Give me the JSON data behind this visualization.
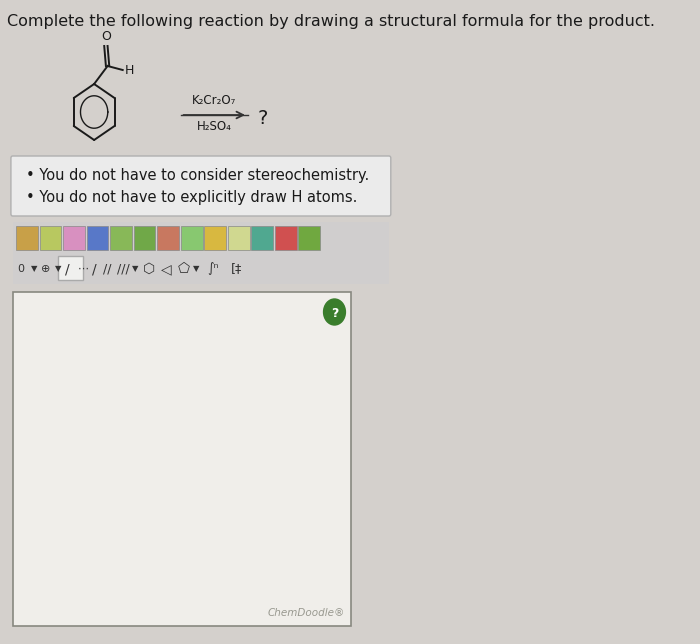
{
  "title": "Complete the following reaction by drawing a structural formula for the product.",
  "title_fontsize": 11.5,
  "background_color": "#d4d0cc",
  "black_color": "#1a1a1a",
  "bullet_text_1": "You do not have to consider stereochemistry.",
  "bullet_text_2": "You do not have to explicitly draw H atoms.",
  "reagent_line1": "K₂Cr₂O₇",
  "reagent_line2": "H₂SO₄",
  "question_mark": "?",
  "chemdoodle_text": "ChemDoodle®",
  "note_box_bg": "#ebebeb",
  "note_box_border": "#b0b0b0",
  "toolbar_bg": "#d0cece",
  "toolbar_icon_bg": "#dddde8",
  "draw_box_bg": "#f0eeea",
  "draw_box_border": "#888880",
  "green_circle_color": "#3a7d2c",
  "arrow_color": "#333333",
  "molecule_color": "#1a1a1a",
  "chemdoodle_color": "#999990",
  "note_fontsize": 10.5,
  "reagent_fontsize": 8.5
}
